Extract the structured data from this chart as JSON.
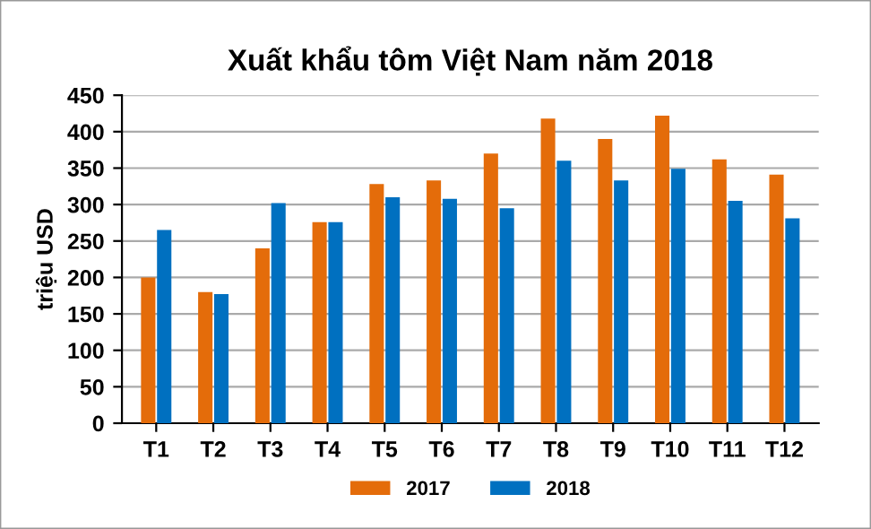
{
  "chart_data": {
    "type": "bar",
    "title": "Xuất khẩu tôm Việt Nam năm 2018",
    "ylabel": "triệu USD",
    "categories": [
      "T1",
      "T2",
      "T3",
      "T4",
      "T5",
      "T6",
      "T7",
      "T8",
      "T9",
      "T10",
      "T11",
      "T12"
    ],
    "series": [
      {
        "name": "2017",
        "color": "#e46c0a",
        "values": [
          200,
          180,
          240,
          276,
          328,
          333,
          370,
          418,
          390,
          422,
          362,
          341
        ]
      },
      {
        "name": "2018",
        "color": "#0070c0",
        "values": [
          265,
          177,
          302,
          276,
          310,
          308,
          295,
          360,
          333,
          349,
          305,
          281
        ]
      }
    ],
    "ylim": [
      0,
      450
    ],
    "yticks": [
      0,
      50,
      100,
      150,
      200,
      250,
      300,
      350,
      400,
      450
    ],
    "grid": "y",
    "legend": "bottom"
  }
}
